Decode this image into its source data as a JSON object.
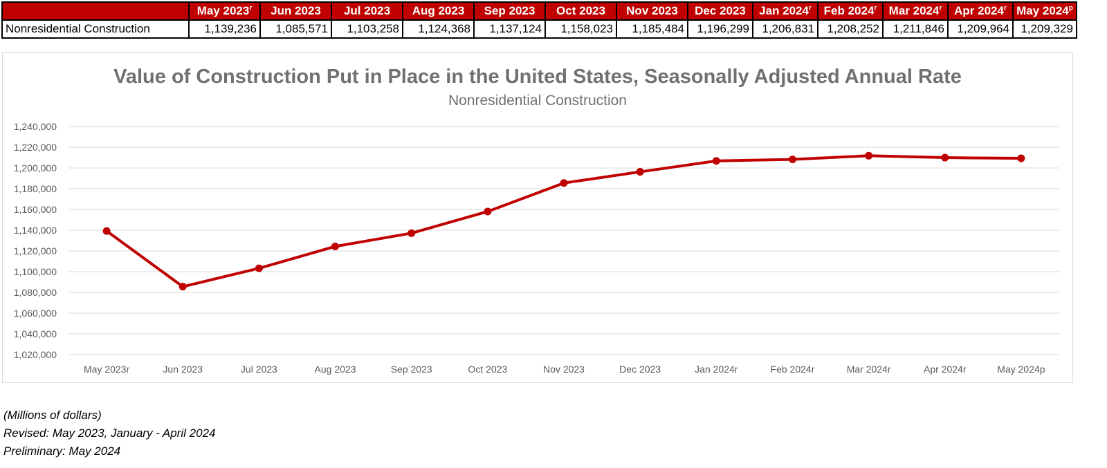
{
  "table": {
    "row_label": "Nonresidential Construction",
    "headers": [
      {
        "text": "May 2023",
        "sup": "r"
      },
      {
        "text": "Jun 2023",
        "sup": ""
      },
      {
        "text": "Jul 2023",
        "sup": ""
      },
      {
        "text": "Aug 2023",
        "sup": ""
      },
      {
        "text": "Sep 2023",
        "sup": ""
      },
      {
        "text": "Oct 2023",
        "sup": ""
      },
      {
        "text": "Nov 2023",
        "sup": ""
      },
      {
        "text": "Dec 2023",
        "sup": ""
      },
      {
        "text": "Jan 2024",
        "sup": "r"
      },
      {
        "text": "Feb 2024",
        "sup": "r"
      },
      {
        "text": "Mar 2024",
        "sup": "r"
      },
      {
        "text": "Apr 2024",
        "sup": "r"
      },
      {
        "text": "May 2024",
        "sup": "p"
      }
    ],
    "values": [
      "1,139,236",
      "1,085,571",
      "1,103,258",
      "1,124,368",
      "1,137,124",
      "1,158,023",
      "1,185,484",
      "1,196,299",
      "1,206,831",
      "1,208,252",
      "1,211,846",
      "1,209,964",
      "1,209,329"
    ]
  },
  "chart_data": {
    "type": "line",
    "title": "Value of Construction Put in Place in the United States, Seasonally Adjusted Annual Rate",
    "subtitle": "Nonresidential Construction",
    "xlabel": "",
    "ylabel": "",
    "categories": [
      "May 2023r",
      "Jun 2023",
      "Jul 2023",
      "Aug 2023",
      "Sep 2023",
      "Oct 2023",
      "Nov 2023",
      "Dec 2023",
      "Jan 2024r",
      "Feb 2024r",
      "Mar 2024r",
      "Apr 2024r",
      "May 2024p"
    ],
    "series": [
      {
        "name": "Nonresidential Construction",
        "values": [
          1139236,
          1085571,
          1103258,
          1124368,
          1137124,
          1158023,
          1185484,
          1196299,
          1206831,
          1208252,
          1211846,
          1209964,
          1209329
        ]
      }
    ],
    "ylim": [
      1020000,
      1240000
    ],
    "ytick_step": 20000,
    "yticks": [
      "1,020,000",
      "1,040,000",
      "1,060,000",
      "1,080,000",
      "1,100,000",
      "1,120,000",
      "1,140,000",
      "1,160,000",
      "1,180,000",
      "1,200,000",
      "1,220,000",
      "1,240,000"
    ],
    "grid": true,
    "legend": "none"
  },
  "notes": {
    "units": "(Millions of dollars)",
    "revised": "Revised: May 2023, January - April 2024",
    "preliminary": "Preliminary: May 2024"
  },
  "colors": {
    "accent": "#c00000",
    "title": "#707070",
    "tick": "#595959",
    "grid": "#d9d9d9"
  }
}
